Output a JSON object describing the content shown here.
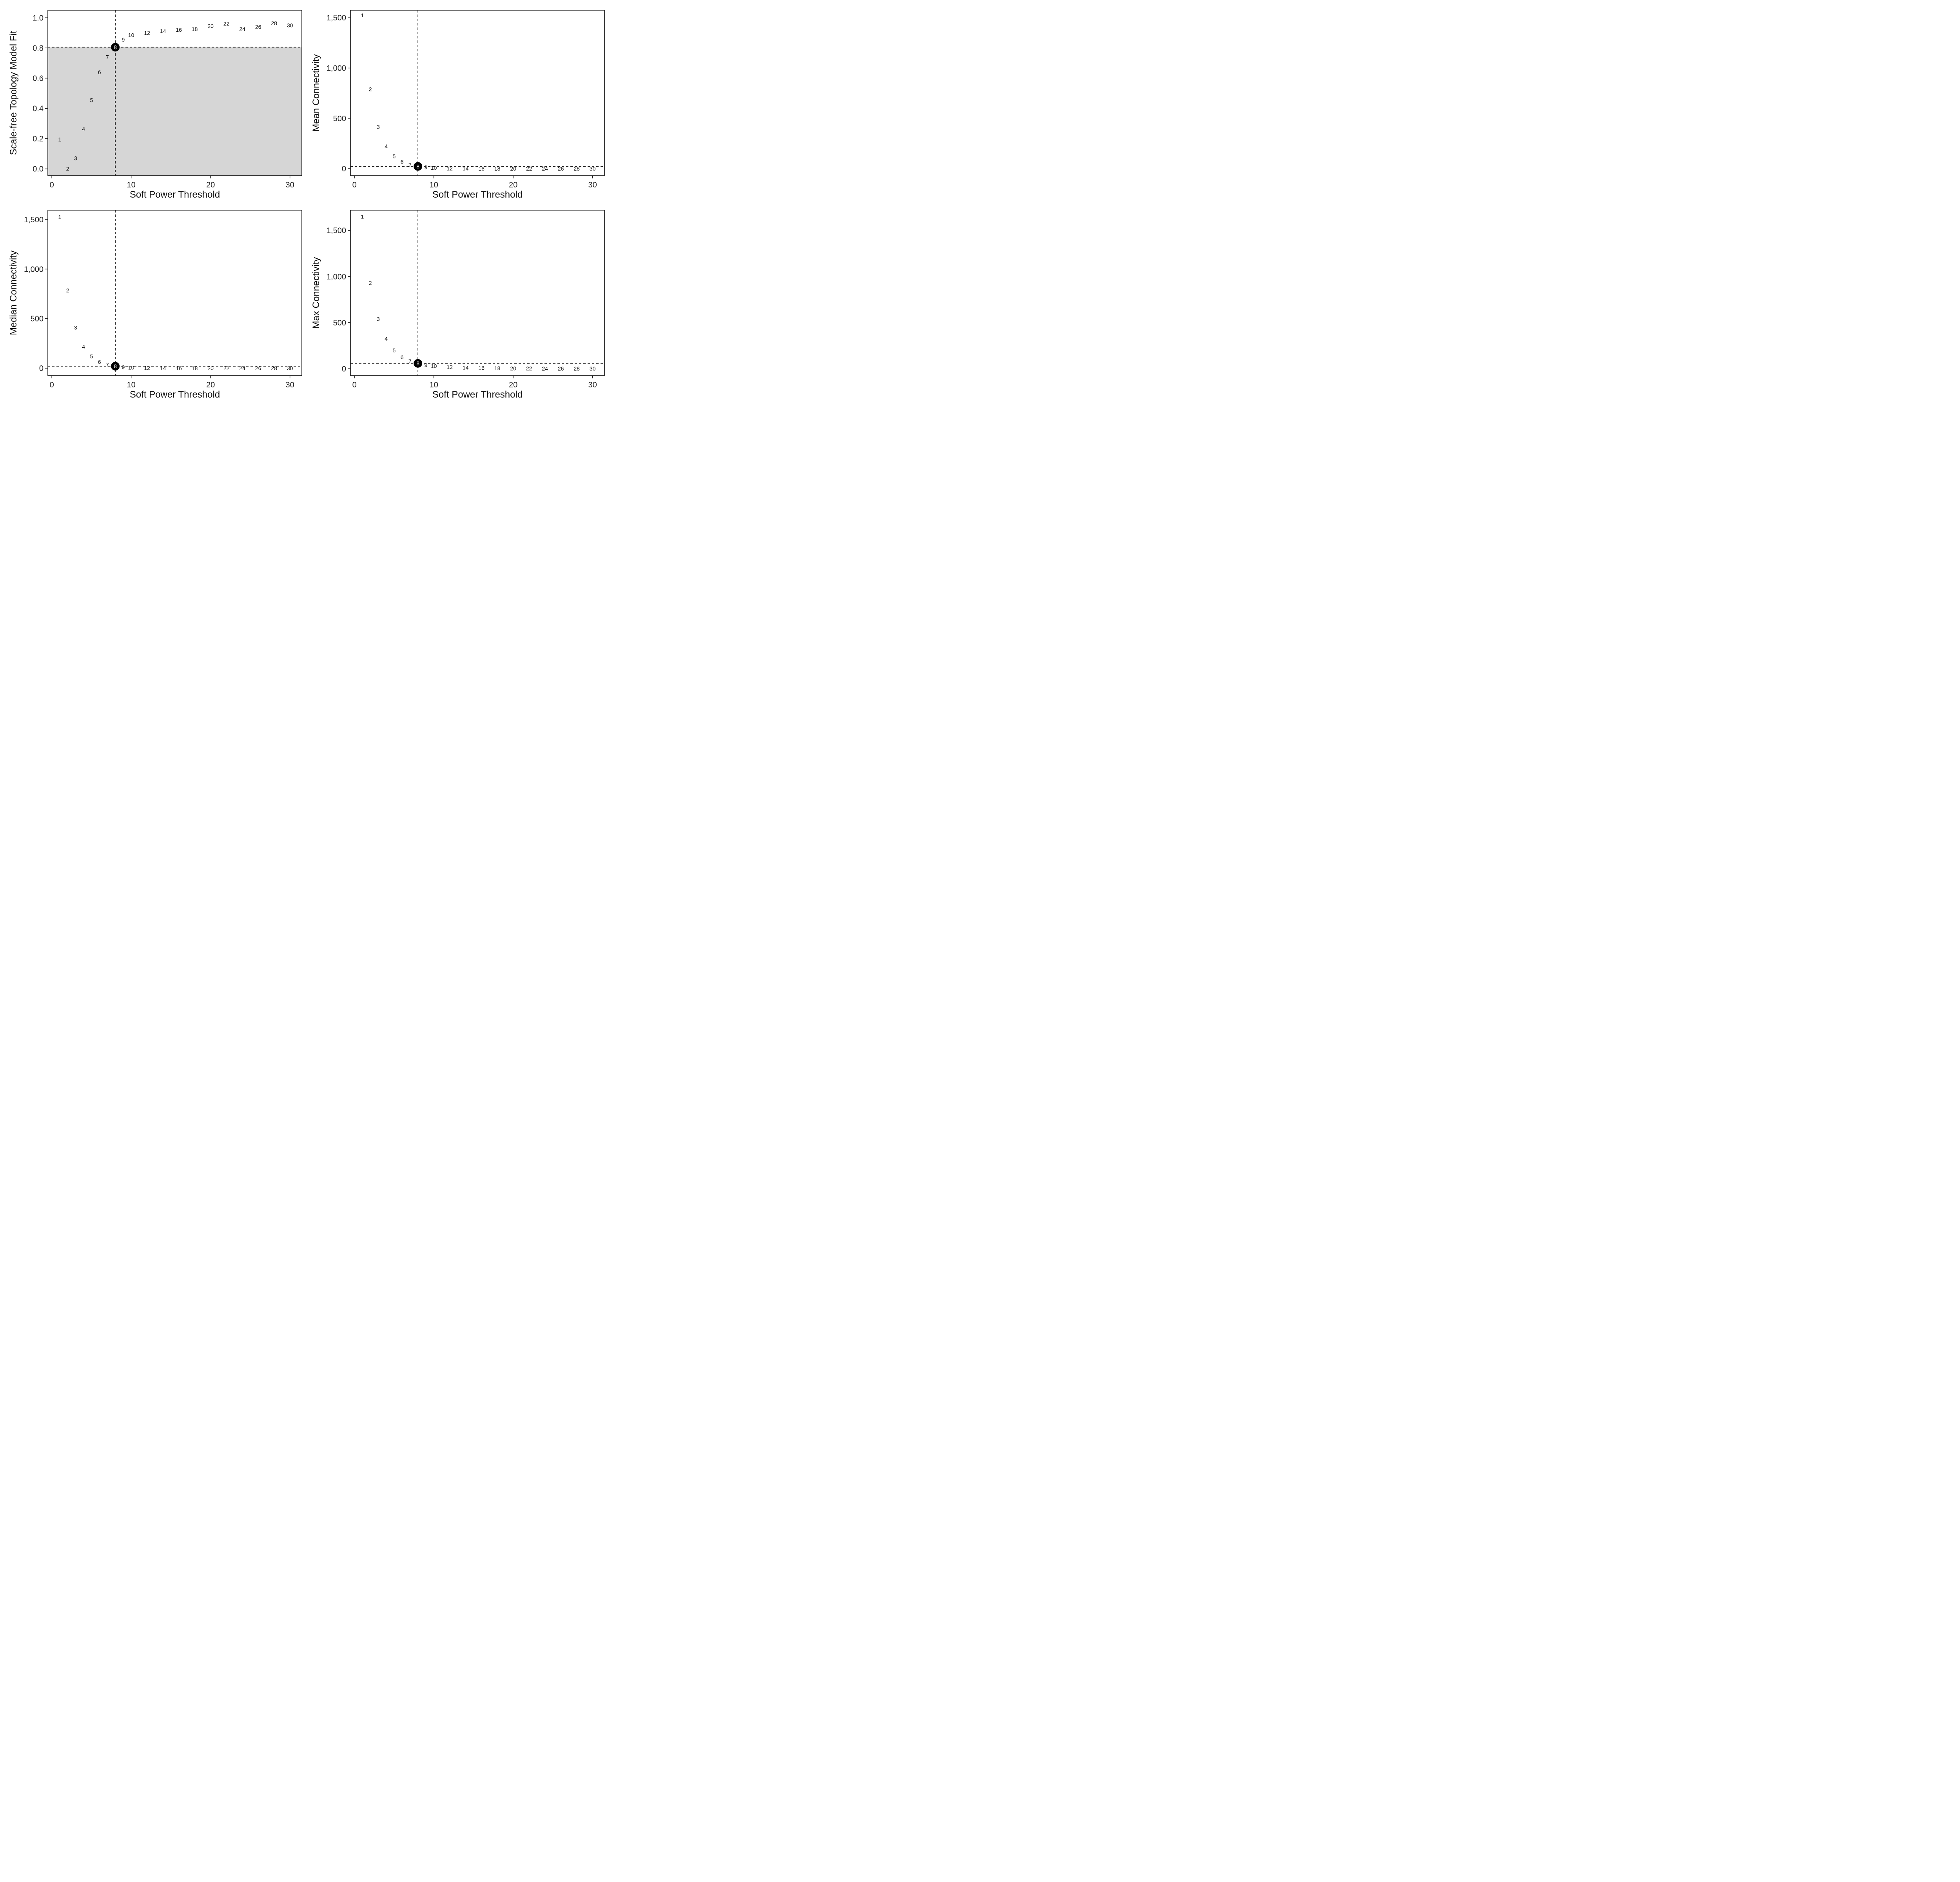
{
  "chart_data": [
    {
      "type": "scatter",
      "xlabel": "Soft Power Threshold",
      "ylabel": "Scale-free Topology Model Fit",
      "xlim": [
        -0.5,
        31.5
      ],
      "ylim": [
        -0.045,
        1.05
      ],
      "xticks": [
        0,
        10,
        20,
        30
      ],
      "yticks": [
        0.0,
        0.2,
        0.4,
        0.6,
        0.8,
        1.0
      ],
      "ytick_labels": [
        "0.0",
        "0.2",
        "0.4",
        "0.6",
        "0.8",
        "1.0"
      ],
      "shade_below": 0.805,
      "selected_power": 8,
      "hline": 0.805,
      "vline": 8,
      "points": [
        {
          "x": 1,
          "y": 0.195,
          "label": "1"
        },
        {
          "x": 2,
          "y": 0.0,
          "label": "2"
        },
        {
          "x": 3,
          "y": 0.07,
          "label": "3"
        },
        {
          "x": 4,
          "y": 0.265,
          "label": "4"
        },
        {
          "x": 5,
          "y": 0.455,
          "label": "5"
        },
        {
          "x": 6,
          "y": 0.64,
          "label": "6"
        },
        {
          "x": 7,
          "y": 0.74,
          "label": "7"
        },
        {
          "x": 8,
          "y": 0.805,
          "label": "8"
        },
        {
          "x": 9,
          "y": 0.855,
          "label": "9"
        },
        {
          "x": 10,
          "y": 0.885,
          "label": "10"
        },
        {
          "x": 12,
          "y": 0.9,
          "label": "12"
        },
        {
          "x": 14,
          "y": 0.912,
          "label": "14"
        },
        {
          "x": 16,
          "y": 0.92,
          "label": "16"
        },
        {
          "x": 18,
          "y": 0.925,
          "label": "18"
        },
        {
          "x": 20,
          "y": 0.945,
          "label": "20"
        },
        {
          "x": 22,
          "y": 0.96,
          "label": "22"
        },
        {
          "x": 24,
          "y": 0.925,
          "label": "24"
        },
        {
          "x": 26,
          "y": 0.94,
          "label": "26"
        },
        {
          "x": 28,
          "y": 0.965,
          "label": "28"
        },
        {
          "x": 30,
          "y": 0.95,
          "label": "30"
        }
      ]
    },
    {
      "type": "scatter",
      "xlabel": "Soft Power Threshold",
      "ylabel": "Mean Connectivity",
      "xlim": [
        -0.5,
        31.5
      ],
      "ylim": [
        -70,
        1575
      ],
      "xticks": [
        0,
        10,
        20,
        30
      ],
      "yticks": [
        0,
        500,
        1000,
        1500
      ],
      "ytick_labels": [
        "0",
        "500",
        "1,000",
        "1,500"
      ],
      "selected_power": 8,
      "hline": 22,
      "vline": 8,
      "points": [
        {
          "x": 1,
          "y": 1525,
          "label": "1"
        },
        {
          "x": 2,
          "y": 790,
          "label": "2"
        },
        {
          "x": 3,
          "y": 415,
          "label": "3"
        },
        {
          "x": 4,
          "y": 222,
          "label": "4"
        },
        {
          "x": 5,
          "y": 122,
          "label": "5"
        },
        {
          "x": 6,
          "y": 68,
          "label": "6"
        },
        {
          "x": 7,
          "y": 38,
          "label": "7"
        },
        {
          "x": 8,
          "y": 22,
          "label": "8"
        },
        {
          "x": 9,
          "y": 14,
          "label": "9"
        },
        {
          "x": 10,
          "y": 8,
          "label": "10"
        },
        {
          "x": 12,
          "y": 3,
          "label": "12"
        },
        {
          "x": 14,
          "y": 1.5,
          "label": "14"
        },
        {
          "x": 16,
          "y": 0.8,
          "label": "16"
        },
        {
          "x": 18,
          "y": 0.4,
          "label": "18"
        },
        {
          "x": 20,
          "y": 0.2,
          "label": "20"
        },
        {
          "x": 22,
          "y": 0.1,
          "label": "22"
        },
        {
          "x": 24,
          "y": 0.1,
          "label": "24"
        },
        {
          "x": 26,
          "y": 0.05,
          "label": "26"
        },
        {
          "x": 28,
          "y": 0.03,
          "label": "28"
        },
        {
          "x": 30,
          "y": 0.02,
          "label": "30"
        }
      ]
    },
    {
      "type": "scatter",
      "xlabel": "Soft Power Threshold",
      "ylabel": "Median Connectivity",
      "xlim": [
        -0.5,
        31.5
      ],
      "ylim": [
        -75,
        1595
      ],
      "xticks": [
        0,
        10,
        20,
        30
      ],
      "yticks": [
        0,
        500,
        1000,
        1500
      ],
      "ytick_labels": [
        "0",
        "500",
        "1,000",
        "1,500"
      ],
      "selected_power": 8,
      "hline": 20,
      "vline": 8,
      "points": [
        {
          "x": 1,
          "y": 1525,
          "label": "1"
        },
        {
          "x": 2,
          "y": 785,
          "label": "2"
        },
        {
          "x": 3,
          "y": 410,
          "label": "3"
        },
        {
          "x": 4,
          "y": 218,
          "label": "4"
        },
        {
          "x": 5,
          "y": 118,
          "label": "5"
        },
        {
          "x": 6,
          "y": 64,
          "label": "6"
        },
        {
          "x": 7,
          "y": 35,
          "label": "7"
        },
        {
          "x": 8,
          "y": 20,
          "label": "8"
        },
        {
          "x": 9,
          "y": 11,
          "label": "9"
        },
        {
          "x": 10,
          "y": 6,
          "label": "10"
        },
        {
          "x": 12,
          "y": 2,
          "label": "12"
        },
        {
          "x": 14,
          "y": 1,
          "label": "14"
        },
        {
          "x": 16,
          "y": 0.5,
          "label": "16"
        },
        {
          "x": 18,
          "y": 0.3,
          "label": "18"
        },
        {
          "x": 20,
          "y": 0.1,
          "label": "20"
        },
        {
          "x": 22,
          "y": 0.05,
          "label": "22"
        },
        {
          "x": 24,
          "y": 0.03,
          "label": "24"
        },
        {
          "x": 26,
          "y": 0.02,
          "label": "26"
        },
        {
          "x": 28,
          "y": 0.01,
          "label": "28"
        },
        {
          "x": 30,
          "y": 0.01,
          "label": "30"
        }
      ]
    },
    {
      "type": "scatter",
      "xlabel": "Soft Power Threshold",
      "ylabel": "Max Connectivity",
      "xlim": [
        -0.5,
        31.5
      ],
      "ylim": [
        -75,
        1720
      ],
      "xticks": [
        0,
        10,
        20,
        30
      ],
      "yticks": [
        0,
        500,
        1000,
        1500
      ],
      "ytick_labels": [
        "0",
        "500",
        "1,000",
        "1,500"
      ],
      "selected_power": 8,
      "hline": 58,
      "vline": 8,
      "points": [
        {
          "x": 1,
          "y": 1650,
          "label": "1"
        },
        {
          "x": 2,
          "y": 930,
          "label": "2"
        },
        {
          "x": 3,
          "y": 540,
          "label": "3"
        },
        {
          "x": 4,
          "y": 325,
          "label": "4"
        },
        {
          "x": 5,
          "y": 200,
          "label": "5"
        },
        {
          "x": 6,
          "y": 125,
          "label": "6"
        },
        {
          "x": 7,
          "y": 82,
          "label": "7"
        },
        {
          "x": 8,
          "y": 58,
          "label": "8"
        },
        {
          "x": 9,
          "y": 40,
          "label": "9"
        },
        {
          "x": 10,
          "y": 30,
          "label": "10"
        },
        {
          "x": 12,
          "y": 18,
          "label": "12"
        },
        {
          "x": 14,
          "y": 12,
          "label": "14"
        },
        {
          "x": 16,
          "y": 8,
          "label": "16"
        },
        {
          "x": 18,
          "y": 6,
          "label": "18"
        },
        {
          "x": 20,
          "y": 4,
          "label": "20"
        },
        {
          "x": 22,
          "y": 3,
          "label": "22"
        },
        {
          "x": 24,
          "y": 2,
          "label": "24"
        },
        {
          "x": 26,
          "y": 2,
          "label": "26"
        },
        {
          "x": 28,
          "y": 1.5,
          "label": "28"
        },
        {
          "x": 30,
          "y": 1,
          "label": "30"
        }
      ]
    }
  ]
}
